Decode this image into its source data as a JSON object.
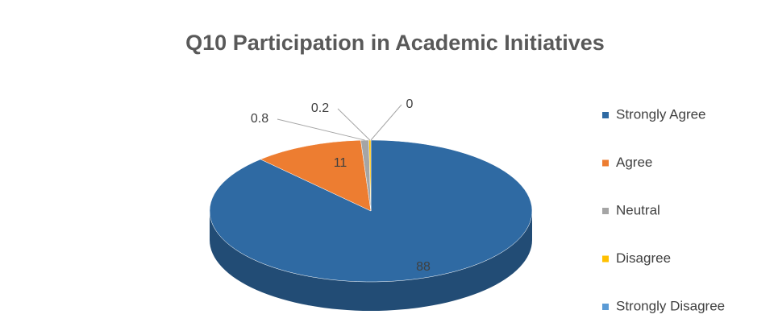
{
  "chart_data": {
    "type": "pie3d",
    "title": "Q10 Participation in Academic Initiatives",
    "categories": [
      "Strongly Agree",
      "Agree",
      "Neutral",
      "Disagree",
      "Strongly Disagree"
    ],
    "values": [
      88,
      11,
      0.8,
      0.2,
      0
    ],
    "colors": [
      "#2f6aa3",
      "#ed7d31",
      "#a5a5a5",
      "#ffc000",
      "#5b9bd5"
    ]
  }
}
